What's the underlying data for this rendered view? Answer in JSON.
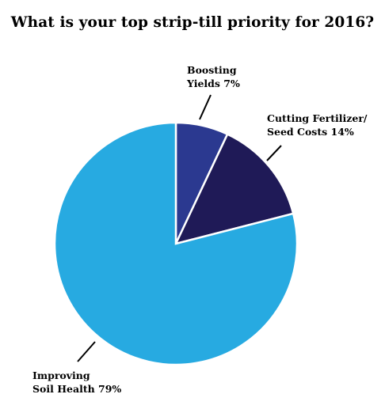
{
  "chart_data": {
    "type": "pie",
    "title": "What is your top strip-till priority for 2016?",
    "slices": [
      {
        "label_lines": [
          "Boosting",
          "Yields 7%"
        ],
        "value": 7,
        "color": "#2b3990"
      },
      {
        "label_lines": [
          "Cutting Fertilizer/",
          "Seed Costs 14%"
        ],
        "value": 14,
        "color": "#1f1a57"
      },
      {
        "label_lines": [
          "Improving",
          "Soil Health 79%"
        ],
        "value": 79,
        "color": "#27aae1"
      }
    ],
    "legend": "none",
    "grid": false,
    "start_angle": "12 o'clock",
    "direction": "clockwise"
  }
}
